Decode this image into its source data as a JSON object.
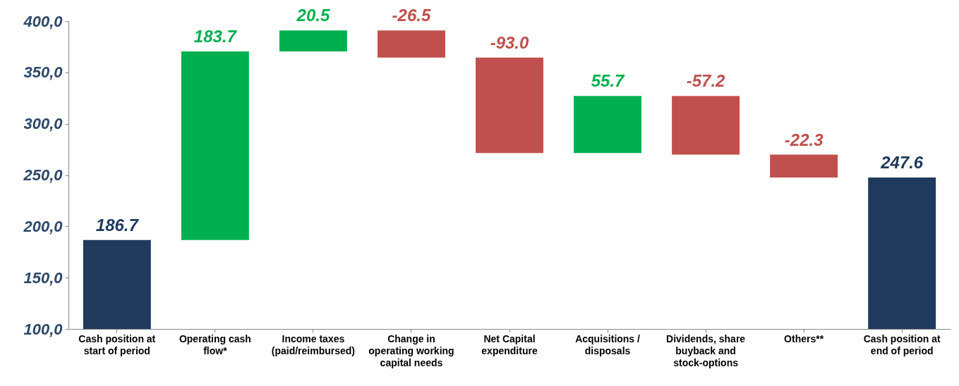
{
  "chart_data": {
    "type": "bar",
    "categories": [
      "Cash position at start of period",
      "Operating cash flow*",
      "Income taxes (paid/reimbursed)",
      "Change in operating working capital needs",
      "Net Capital expenditure",
      "Acquisitions / disposals",
      "Dividends, share buyback and stock-options",
      "Others**",
      "Cash position at end of period"
    ],
    "values": [
      186.7,
      183.7,
      20.5,
      -26.5,
      -93.0,
      55.7,
      -57.2,
      -22.3,
      247.6
    ],
    "base": [
      null,
      186.7,
      370.4,
      390.9,
      364.4,
      271.4,
      327.1,
      269.9,
      null
    ],
    "colors": [
      "#1f3a5c",
      "#00b050",
      "#00b050",
      "#c0504d",
      "#c0504d",
      "#00b050",
      "#c0504d",
      "#c0504d",
      "#1f3a5c"
    ],
    "value_labels": [
      "186.7",
      "183.7",
      "20.5",
      "-26.5",
      "-93.0",
      "55.7",
      "-57.2",
      "-22.3",
      "247.6"
    ],
    "ylim": [
      100,
      400
    ],
    "yticks": [
      {
        "value": 100,
        "label": "100,0"
      },
      {
        "value": 150,
        "label": "150,0"
      },
      {
        "value": 200,
        "label": "200,0"
      },
      {
        "value": 250,
        "label": "250,0"
      },
      {
        "value": 300,
        "label": "300,0"
      },
      {
        "value": 350,
        "label": "350,0"
      },
      {
        "value": 400,
        "label": "400,0"
      }
    ]
  }
}
